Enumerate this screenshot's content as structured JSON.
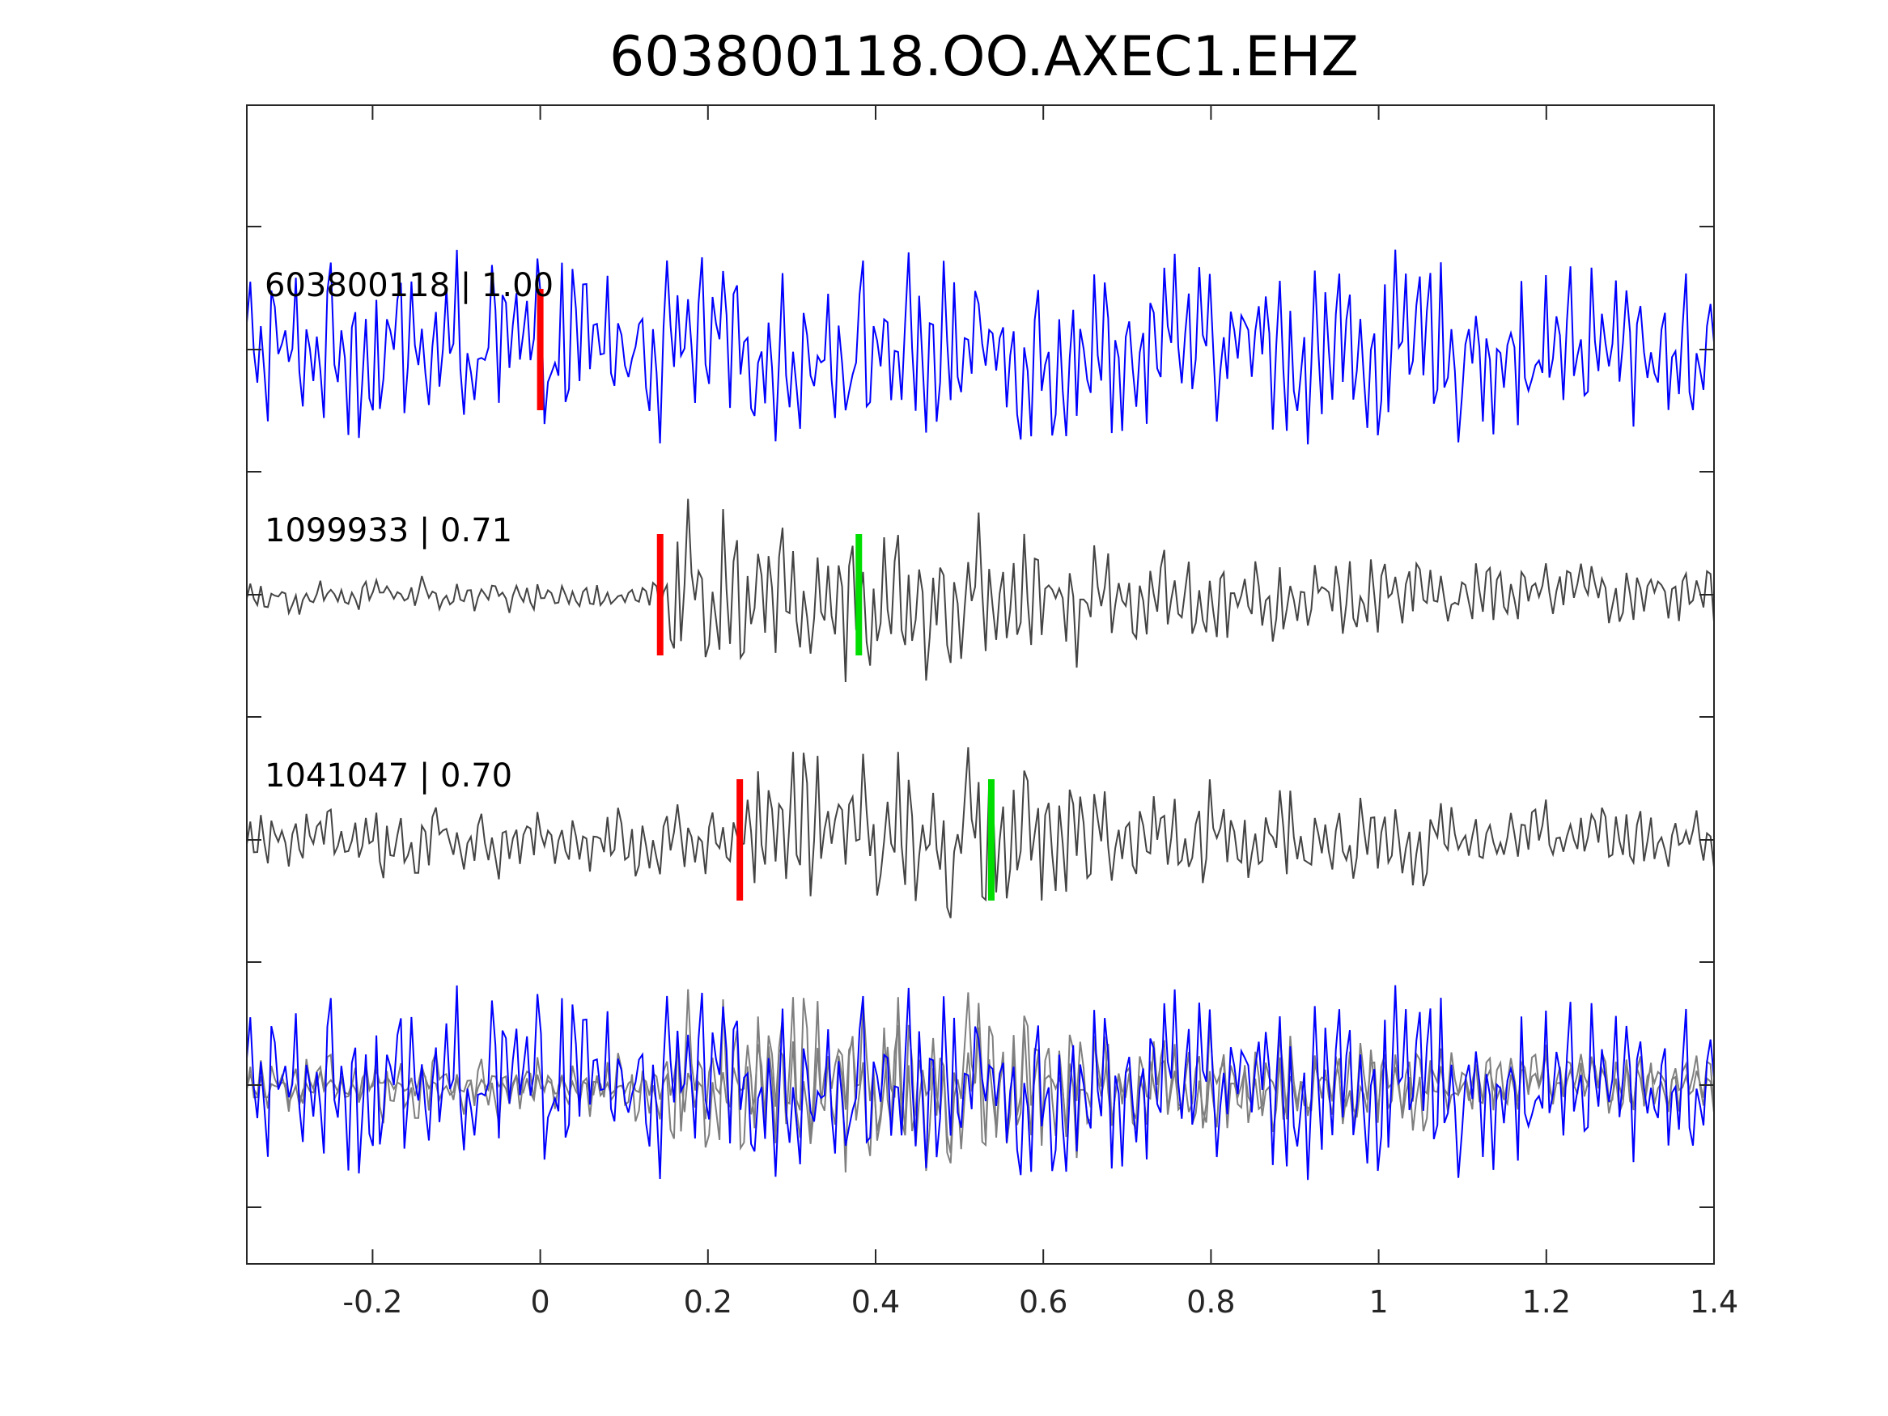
{
  "chart_data": {
    "type": "line",
    "title": "603800118.OO.AXEC1.EHZ",
    "xlabel": "",
    "ylabel": "",
    "xlim": [
      -0.35,
      1.4
    ],
    "x_ticks": [
      "-0.2",
      "0",
      "0.2",
      "0.4",
      "0.6",
      "0.8",
      "1",
      "1.2",
      "1.4"
    ],
    "x_tick_values": [
      -0.2,
      0,
      0.2,
      0.4,
      0.6,
      0.8,
      1,
      1.2,
      1.4
    ],
    "y_ticks_labeled": false,
    "grid": false,
    "colors": {
      "master": "#0000ff",
      "neighbor": "#444444",
      "overlay_gray": "#7f7f7f",
      "pick_p": "#ff0000",
      "pick_s": "#00dd00"
    },
    "traces": [
      {
        "label": "603800118 | 1.00",
        "event_id": "603800118",
        "correlation": 1.0,
        "color": "#0000ff",
        "p_pick": 0.0,
        "s_pick": null,
        "onset": -0.35,
        "amp_before": 1.0,
        "amp_after": 1.0
      },
      {
        "label": "1099933 | 0.71",
        "event_id": "1099933",
        "correlation": 0.71,
        "color": "#444444",
        "p_pick": 0.143,
        "s_pick": 0.38,
        "onset": 0.143,
        "amp_before": 0.2,
        "amp_after": 1.0
      },
      {
        "label": "1041047 | 0.70",
        "event_id": "1041047",
        "correlation": 0.7,
        "color": "#444444",
        "p_pick": 0.238,
        "s_pick": 0.538,
        "onset": 0.238,
        "amp_before": 0.4,
        "amp_after": 1.0
      }
    ],
    "overlay": {
      "description_visible": false,
      "series": [
        "603800118",
        "1099933",
        "1041047"
      ]
    }
  }
}
